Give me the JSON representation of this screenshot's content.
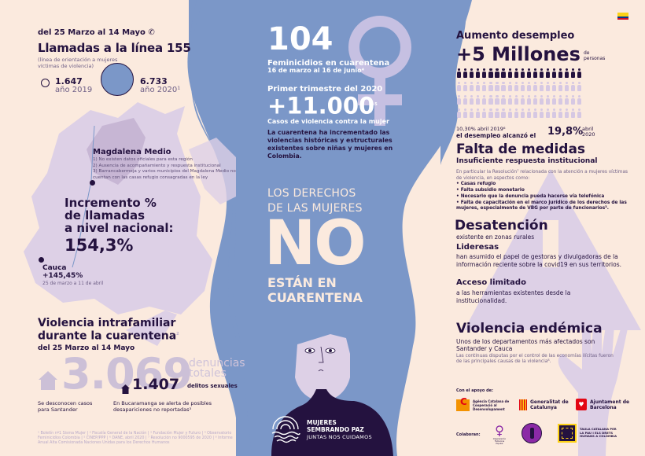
{
  "colors": {
    "background": "#fbeade",
    "hair_blue": "#7b97c8",
    "dark_purple": "#24123f",
    "lavender": "#ddd0e6",
    "lavender_dark": "#c7b6d4",
    "white": "#ffffff"
  },
  "flag": {
    "name": "colombia-flag-icon",
    "colors": [
      "#fcd116",
      "#003893",
      "#ce1126"
    ]
  },
  "calls": {
    "date_range": "del 25 Marzo al 14 Mayo",
    "phone_icon": "phone-icon",
    "title": "Llamadas a la línea 155",
    "subtitle": "(línea de orientación a mujeres víctimas de violencia)",
    "value_2019": "1.647",
    "label_2019": "año 2019",
    "value_2020": "6.733",
    "label_2020": "año 2020¹"
  },
  "map": {
    "magdalena_title": "Magdalena Medio",
    "magdalena_items": [
      "1) No existen datos oficiales para esta región",
      "2) Ausencia de acompañamiento y respuesta institucional",
      "3) Barrancabermeja y varios municipios del Magdalena Medio no cuentan con las casas refugio consagradas en la ley"
    ],
    "increment_label_1": "Incremento %",
    "increment_label_2": "de llamadas",
    "increment_label_3": "a nivel nacional:",
    "increment_value": "154,3%",
    "cauca_name": "Cauca",
    "cauca_value": "+145,45%",
    "cauca_dates": "25 de marzo a 11 de abril"
  },
  "intrafamiliar": {
    "title_1": "Violencia intrafamiliar",
    "title_2": "durante la cuarentena",
    "title_sup": "2",
    "date_range": "del 25 Marzo al 14 Mayo",
    "total_value": "3.069",
    "total_label_1": "denuncias",
    "total_label_2": "totales",
    "sexual_value": "1.407",
    "sexual_label": "delitos sexuales",
    "santander_note": "Se desconocen casos para Santander",
    "bucaramanga_note": "En Bucaramanga se alerta de posibles desapariciones no reportadas³"
  },
  "footnotes": "¹ Boletín nº1 Sisma Mujer | ² Fiscalía General de la Nación | ³ Fundación Mujer y Futuro | ⁴ Observatorio Feminicidios Colombia | ⁵ CINEP/PPP | ⁶ DANE, abril 2020 | ⁷ Resolución no 9000595 de 2020 | ⁸ Informe Anual Alta Comisionada Naciones Unidas para los Derechos Humanos",
  "center": {
    "femicides_value": "104",
    "femicides_label": "Feminicidios en cuarentena",
    "femicides_dates": "16 de marzo al 16 de junio⁴",
    "quarter_label": "Primer trimestre del 2020",
    "cases_value": "+11.000",
    "cases_sup": "5",
    "cases_label": "Casos de violencia contra la mujer",
    "description": "La cuarentena ha incrementado las violencias históricas y estructurales existentes sobre niñas y mujeres en Colombia.",
    "slogan_1": "LOS DERECHOS",
    "slogan_2": "DE LAS MUJERES",
    "slogan_no": "NO",
    "slogan_3": "ESTÁN EN",
    "slogan_4": "CUARENTENA",
    "logo_line_1": "MUJERES",
    "logo_line_2": "SEMBRANDO PAZ",
    "logo_tagline": "JUNTAS NOS CUIDAMOS"
  },
  "unemployment": {
    "title": "Aumento desempleo",
    "value": "+5 Millones",
    "unit_1": "de",
    "unit_2": "personas",
    "people_rows": 4,
    "people_per_row": 20,
    "people_highlighted": 20,
    "rate_2019": "10,30% abril 2019⁶",
    "reached_label": "el desempleo alcanzó el",
    "rate_2020": "19,8%",
    "rate_2020_label_1": "abril",
    "rate_2020_label_2": "2020"
  },
  "measures": {
    "title": "Falta de medidas",
    "subtitle": "Insuficiente respuesta institucional",
    "intro": "En particular la Resolución⁷ relacionada con la atención a mujeres víctimas de violencia, en aspectos como:",
    "items": [
      "• Casas refugio",
      "• Falta subsidio monetario",
      "• Necesario que la denuncia pueda hacerse vía telefónica",
      "• Falta de capacitación en el marco jurídico de los derechos de las mujeres, especialmente de VBG por parte de funcionarios³."
    ]
  },
  "neglect": {
    "title": "Desatención",
    "subtitle": "existente en zonas rurales",
    "leaders_title": "Lideresas",
    "leaders_text": "han asumido el papel de gestoras y divulgadoras de la información reciente sobre la covid19 en sus territorios.",
    "access_title": "Acceso limitado",
    "access_text": "a las herramientas existentes desde la institucionalidad."
  },
  "endemic": {
    "title": "Violencia endémica",
    "subtitle": "Unos de los departamentos más afectados son Santander y Cauca",
    "text": "Las continuas disputas por el control de las economías ilícitas fueron de las principales causas de la violencia⁸."
  },
  "sponsors": {
    "support_label": "Con el apoyo de:",
    "supporters": [
      {
        "name": "Agència Catalana de Cooperació al Desenvolupament",
        "icon": "accd-logo-icon"
      },
      {
        "name": "Generalitat de Catalunya",
        "icon": "generalitat-logo-icon"
      },
      {
        "name": "Ajuntament de Barcelona",
        "icon": "ajuntament-logo-icon"
      }
    ],
    "collab_label": "Colaboran:",
    "collaborators": [
      {
        "name": "Organización Femenina Popular",
        "icon": "ofp-logo-icon"
      },
      {
        "name": "",
        "icon": "circle-figure-logo-icon"
      },
      {
        "name": "TAULA CATALANA PER LA PAU I ELS DRETS HUMANS A COLÒMBIA",
        "icon": "taula-logo-icon"
      }
    ]
  }
}
